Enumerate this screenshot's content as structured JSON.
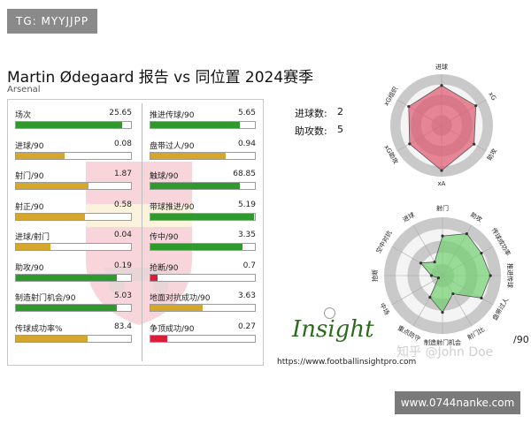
{
  "watermark_top": "TG: MYYJJPP",
  "watermark_bottom": "www.0744nanke.com",
  "title": "Martin Ødegaard 报告 vs 同位置 2024赛季",
  "subtitle": "Arsenal",
  "colors": {
    "green": "#2e9a2e",
    "gold": "#d4a72c",
    "red": "#d81e3c"
  },
  "chart_data": [
    {
      "type": "bar",
      "title": "Martin Ødegaard 报告 vs 同位置 2024赛季",
      "subtitle": "Arsenal",
      "categories": [
        "场次",
        "进球/90",
        "射门/90",
        "射正/90",
        "进球/射门",
        "助攻/90",
        "制造射门机会/90",
        "传球成功率%"
      ],
      "values": [
        25.65,
        0.08,
        1.87,
        0.58,
        0.04,
        0.19,
        5.03,
        83.4
      ],
      "fill_fraction": [
        0.92,
        0.42,
        0.63,
        0.6,
        0.3,
        0.88,
        0.88,
        0.62
      ],
      "colors": [
        "green",
        "gold",
        "gold",
        "gold",
        "gold",
        "green",
        "green",
        "gold"
      ]
    },
    {
      "type": "bar",
      "categories": [
        "推进传球/90",
        "盘带过人/90",
        "触球/90",
        "带球推进/90",
        "传中/90",
        "抢断/90",
        "地面对抗成功/90",
        "争顶成功/90"
      ],
      "values": [
        5.65,
        0.94,
        68.85,
        5.19,
        3.35,
        0.7,
        3.63,
        0.27
      ],
      "fill_fraction": [
        0.86,
        0.72,
        0.86,
        0.99,
        0.88,
        0.07,
        0.5,
        0.16
      ],
      "colors": [
        "green",
        "gold",
        "green",
        "green",
        "green",
        "red",
        "gold",
        "red"
      ]
    },
    {
      "type": "radar",
      "axes": [
        "进球",
        "xG",
        "助攻",
        "xA",
        "xG助攻",
        "xG组织"
      ],
      "values": [
        0.78,
        0.77,
        0.73,
        0.88,
        0.72,
        0.74
      ],
      "color": "#e0566e"
    },
    {
      "type": "radar",
      "axes": [
        "射门",
        "助攻",
        "传球成功率",
        "推进传球",
        "盘带过人",
        "射门比",
        "制造射门机会",
        "重点防守",
        "中场",
        "抢断",
        "空中对抗",
        "进球"
      ],
      "values": [
        0.68,
        0.83,
        0.77,
        0.82,
        0.77,
        0.36,
        0.63,
        0.43,
        0.08,
        0.19,
        0.43,
        0.27
      ],
      "color": "#6fd06f"
    }
  ],
  "counts": [
    {
      "label": "进球数:",
      "value": "2"
    },
    {
      "label": "助攻数:",
      "value": "5"
    }
  ],
  "logo_text": "Insight",
  "url": "https://www.footballinsightpro.com",
  "zhihu_mark": "知乎 @John Doe",
  "per90_label": "/90"
}
